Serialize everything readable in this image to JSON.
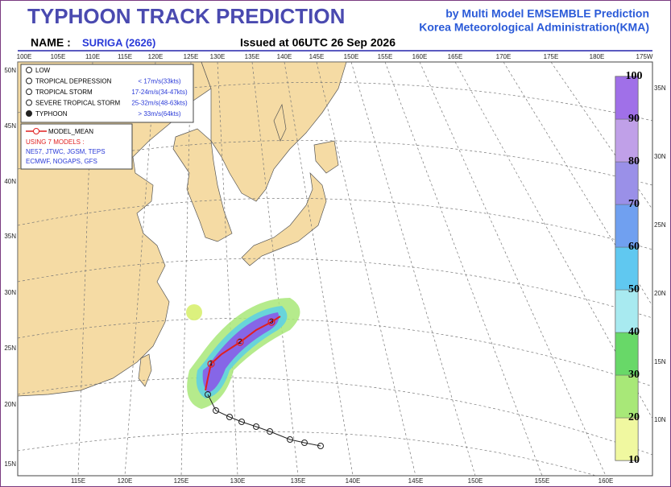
{
  "header": {
    "title": "TYPHOON  TRACK  PREDICTION",
    "credit": [
      "by Multi Model EMSEMBLE Prediction",
      "Korea Meteorological Administration(KMA)"
    ],
    "name_label": "NAME :",
    "name": "SURIGA (2626)",
    "issued": "Issued at  06UTC 26 Sep 2026"
  },
  "map": {
    "top_lon_labels": [
      "100E",
      "105E",
      "110E",
      "115E",
      "120E",
      "125E",
      "130E",
      "135E",
      "140E",
      "145E",
      "150E",
      "155E",
      "160E",
      "165E",
      "170E",
      "175E",
      "180E",
      "175W"
    ],
    "bottom_lon_labels": [
      "115E",
      "120E",
      "125E",
      "130E",
      "135E",
      "140E",
      "145E",
      "150E",
      "155E",
      "160E"
    ],
    "left_lat_labels": [
      "50N",
      "45N",
      "40N",
      "35N",
      "30N",
      "25N",
      "20N",
      "15N"
    ],
    "right_lat_labels": [
      "35N",
      "30N",
      "25N",
      "20N",
      "15N",
      "10N"
    ],
    "track_labels": [
      "1",
      "2",
      "3"
    ]
  },
  "legend": {
    "categories": [
      {
        "label": "LOW"
      },
      {
        "label": "TROPICAL DEPRESSION",
        "range": "< 17m/s(33kts)"
      },
      {
        "label": "TROPICAL STORM",
        "range": "17-24m/s(34-47kts)"
      },
      {
        "label": "SEVERE TROPICAL STORM",
        "range": "25-32m/s(48-63kts)"
      },
      {
        "label": "TYPHOON",
        "range": "> 33m/s(64kts)"
      }
    ]
  },
  "models": {
    "mean_label": "MODEL_MEAN",
    "using": "USING 7 MODELS :",
    "lines": [
      "NE57, JTWC, JGSM, TEPS",
      "ECMWF, NOGAPS, GFS"
    ]
  },
  "colorbar": {
    "labels": [
      10,
      20,
      30,
      40,
      50,
      60,
      70,
      80,
      90,
      100
    ]
  }
}
